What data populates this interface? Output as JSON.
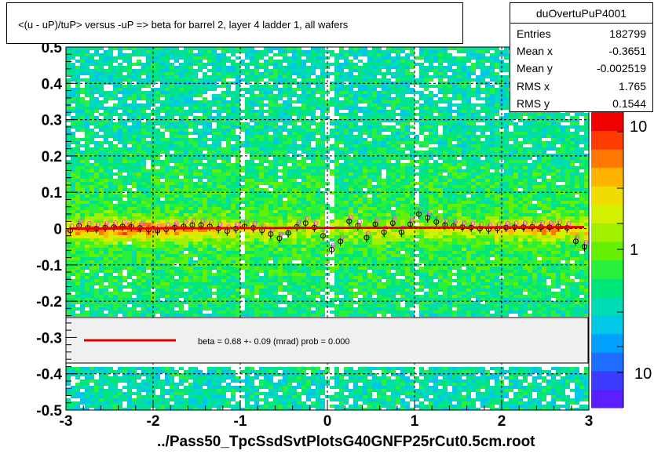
{
  "title": "<(u - uP)/tuP>  versus  -uP => beta for barrel 2, layer 4 ladder 1, all wafers",
  "x_title": "../Pass50_TpcSsdSvtPlotsG40GNFP25rCut0.5cm.root",
  "stats": {
    "name": "duOvertuPuP4001",
    "rows": [
      {
        "label": "Entries",
        "value": "182799"
      },
      {
        "label": "Mean x",
        "value": "-0.3651"
      },
      {
        "label": "Mean y",
        "value": "-0.002519"
      },
      {
        "label": "RMS x",
        "value": "1.765"
      },
      {
        "label": "RMS y",
        "value": "0.1544"
      }
    ]
  },
  "legend": {
    "text": "beta =    0.68 +-  0.09 (mrad) prob = 0.000",
    "line_color": "#e00000"
  },
  "colors": {
    "fit_line": "#e00000",
    "frame": "#000000",
    "legend_bg": "#f0f0f0"
  },
  "chart_data": {
    "type": "heatmap",
    "xlim": [
      -3,
      3
    ],
    "ylim": [
      -0.5,
      0.5
    ],
    "x_ticks": [
      -3,
      -2,
      -1,
      0,
      1,
      2,
      3
    ],
    "y_ticks": [
      -0.5,
      -0.4,
      -0.3,
      -0.2,
      -0.1,
      0,
      0.1,
      0.2,
      0.3,
      0.4,
      0.5
    ],
    "y_tick_labels": [
      "-0.5",
      "-0.4",
      "-0.3",
      "-0.2",
      "-0.1",
      "0",
      "0.1",
      "0.2",
      "0.3",
      "0.4",
      "0.5"
    ],
    "grid": true,
    "colorbar_labels": [
      "10",
      "1",
      "10"
    ],
    "fit": {
      "x": [
        -3,
        3
      ],
      "y": [
        0.0,
        0.004
      ]
    },
    "profile": {
      "x": [
        -2.95,
        -2.85,
        -2.75,
        -2.65,
        -2.55,
        -2.45,
        -2.35,
        -2.25,
        -2.15,
        -2.05,
        -1.95,
        -1.85,
        -1.75,
        -1.65,
        -1.55,
        -1.45,
        -1.35,
        -1.25,
        -1.15,
        -1.05,
        -0.95,
        -0.85,
        -0.75,
        -0.65,
        -0.55,
        -0.45,
        -0.35,
        -0.25,
        -0.15,
        -0.05,
        0.05,
        0.15,
        0.25,
        0.35,
        0.45,
        0.55,
        0.65,
        0.75,
        0.85,
        0.95,
        1.05,
        1.15,
        1.25,
        1.35,
        1.45,
        1.55,
        1.65,
        1.75,
        1.85,
        1.95,
        2.05,
        2.15,
        2.25,
        2.35,
        2.45,
        2.55,
        2.65,
        2.75,
        2.85,
        2.95
      ],
      "y": [
        -0.005,
        0.008,
        0.002,
        0.0,
        0.003,
        0.004,
        0.006,
        0.005,
        0.002,
        -0.003,
        -0.006,
        -0.002,
        0.003,
        0.006,
        0.01,
        0.01,
        0.006,
        0.0,
        -0.007,
        0.0,
        0.006,
        0.002,
        -0.005,
        -0.015,
        -0.027,
        -0.012,
        0.005,
        0.015,
        0.003,
        -0.02,
        -0.058,
        -0.035,
        0.02,
        0.008,
        -0.025,
        0.012,
        -0.01,
        0.015,
        -0.01,
        0.012,
        0.04,
        0.03,
        0.018,
        0.01,
        0.007,
        0.004,
        0.003,
        0.0,
        -0.002,
        0.0,
        0.003,
        0.004,
        0.004,
        0.005,
        0.004,
        0.004,
        0.006,
        0.002,
        -0.035,
        -0.05
      ]
    }
  }
}
